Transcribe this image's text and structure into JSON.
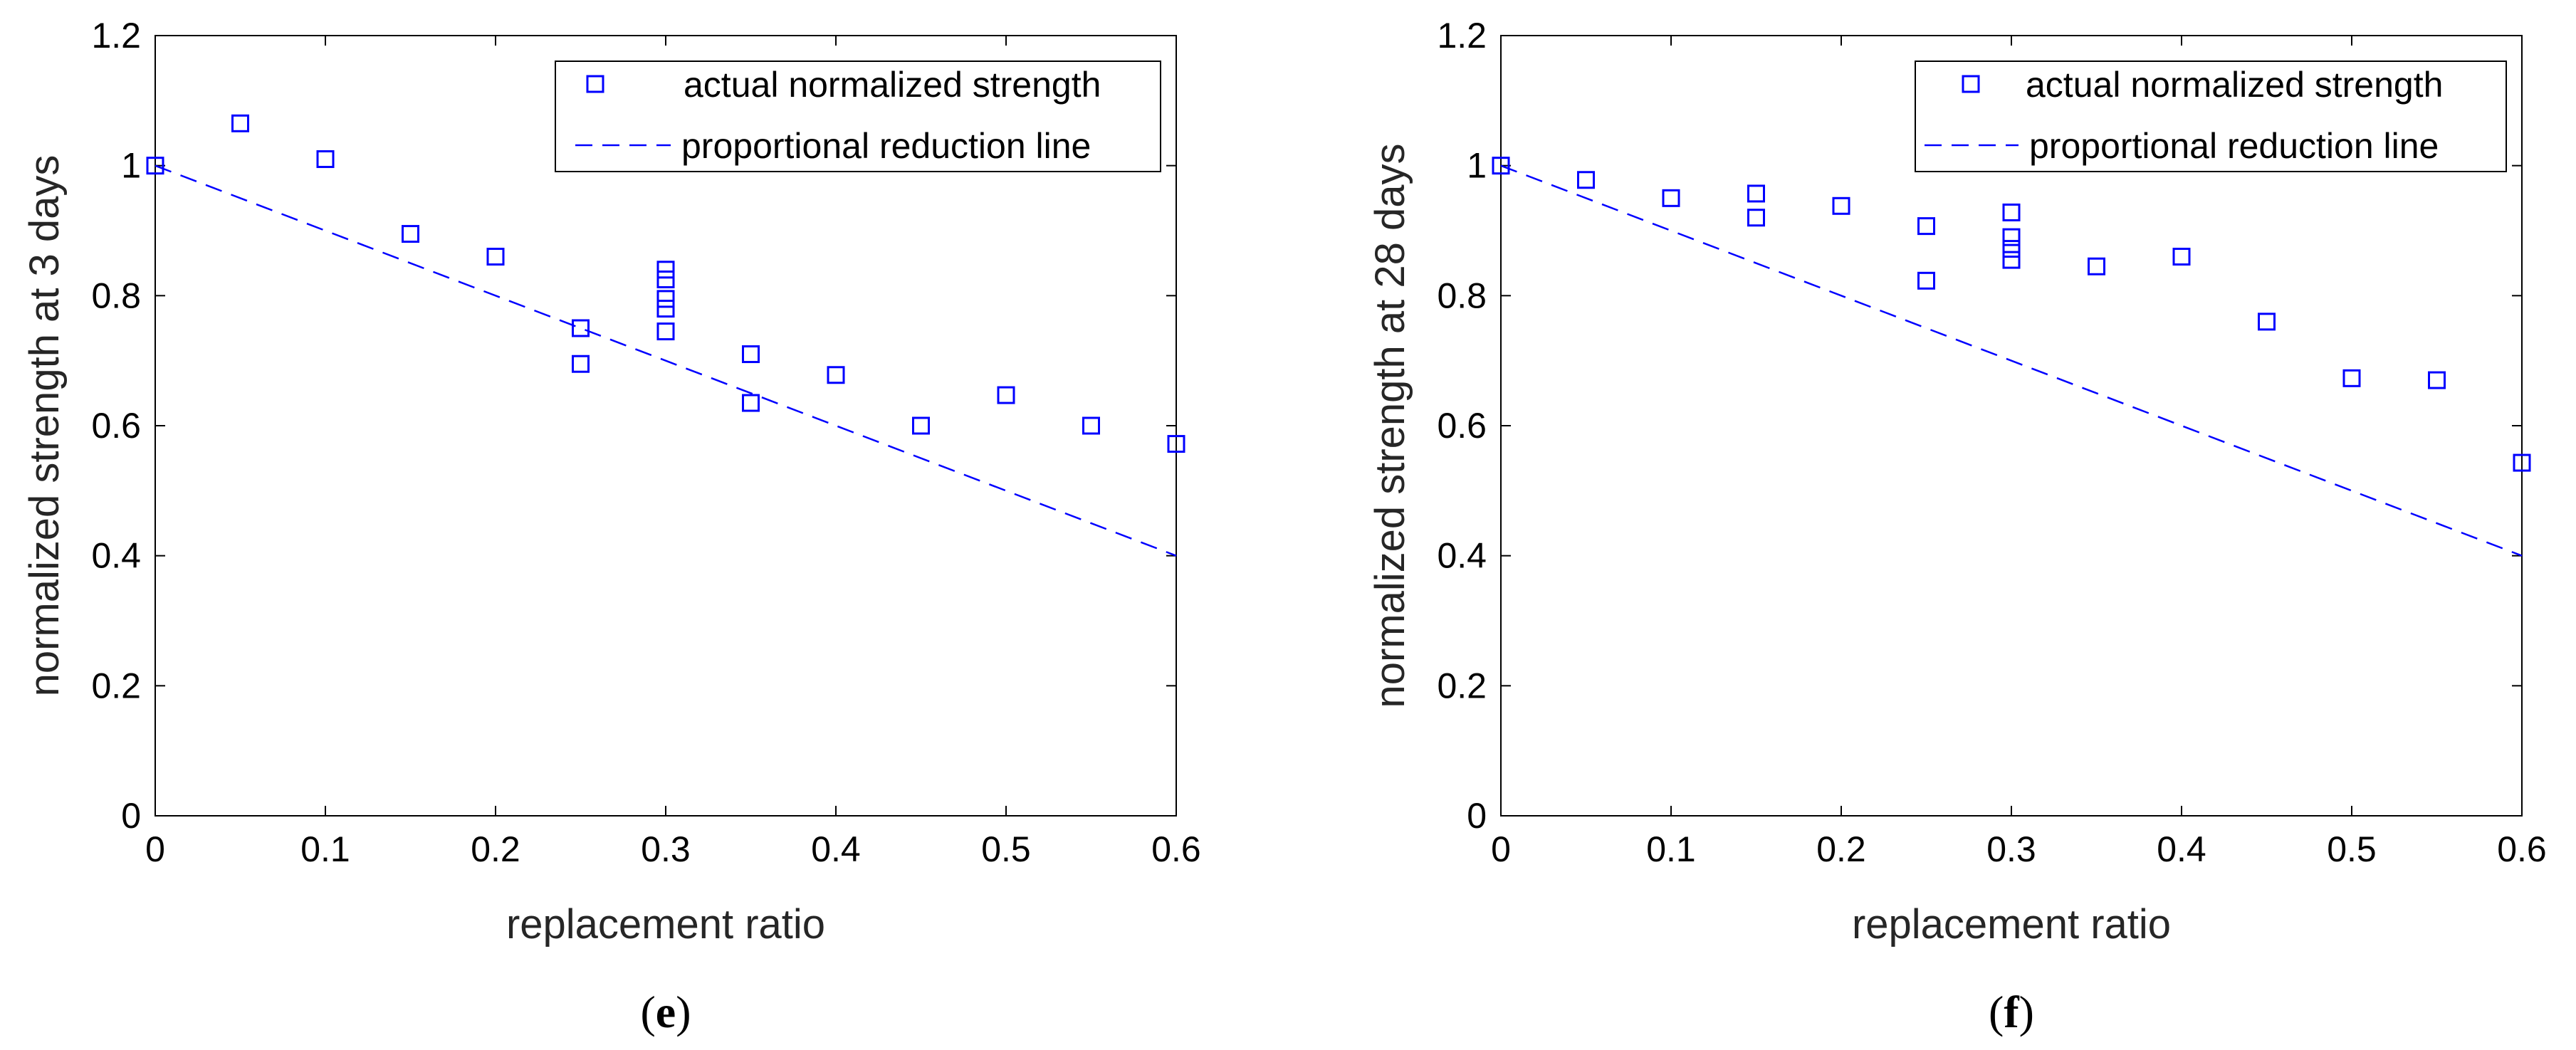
{
  "chart_data": [
    {
      "type": "scatter",
      "panel_label": "e",
      "xlabel": "replacement ratio",
      "ylabel": "normalized strength at 3 days",
      "xlim": [
        0,
        0.6
      ],
      "ylim": [
        0,
        1.2
      ],
      "xticks": [
        "0",
        "0.1",
        "0.2",
        "0.3",
        "0.4",
        "0.5",
        "0.6"
      ],
      "yticks": [
        "0",
        "0.2",
        "0.4",
        "0.6",
        "0.8",
        "1",
        "1.2"
      ],
      "grid": false,
      "legend_position": "top-right",
      "series": [
        {
          "name": "actual normalized strength",
          "kind": "marker-square",
          "color": "#0000ff",
          "points": [
            [
              0,
              1.0
            ],
            [
              0.05,
              1.065
            ],
            [
              0.1,
              1.01
            ],
            [
              0.15,
              0.895
            ],
            [
              0.2,
              0.86
            ],
            [
              0.25,
              0.75
            ],
            [
              0.25,
              0.695
            ],
            [
              0.3,
              0.84
            ],
            [
              0.3,
              0.825
            ],
            [
              0.3,
              0.795
            ],
            [
              0.3,
              0.78
            ],
            [
              0.3,
              0.745
            ],
            [
              0.35,
              0.71
            ],
            [
              0.35,
              0.635
            ],
            [
              0.4,
              0.678
            ],
            [
              0.45,
              0.6
            ],
            [
              0.5,
              0.647
            ],
            [
              0.55,
              0.6
            ],
            [
              0.6,
              0.572
            ]
          ]
        },
        {
          "name": "proportional reduction line",
          "kind": "dashed-line",
          "color": "#0000ff",
          "points": [
            [
              0,
              1.0
            ],
            [
              0.6,
              0.4
            ]
          ]
        }
      ]
    },
    {
      "type": "scatter",
      "panel_label": "f",
      "xlabel": "replacement ratio",
      "ylabel": "normalized strength at 28 days",
      "xlim": [
        0,
        0.6
      ],
      "ylim": [
        0,
        1.2
      ],
      "xticks": [
        "0",
        "0.1",
        "0.2",
        "0.3",
        "0.4",
        "0.5",
        "0.6"
      ],
      "yticks": [
        "0",
        "0.2",
        "0.4",
        "0.6",
        "0.8",
        "1",
        "1.2"
      ],
      "grid": false,
      "legend_position": "top-right",
      "series": [
        {
          "name": "actual normalized strength",
          "kind": "marker-square",
          "color": "#0000ff",
          "points": [
            [
              0,
              1.0
            ],
            [
              0.05,
              0.978
            ],
            [
              0.1,
              0.95
            ],
            [
              0.15,
              0.957
            ],
            [
              0.15,
              0.92
            ],
            [
              0.2,
              0.938
            ],
            [
              0.25,
              0.907
            ],
            [
              0.25,
              0.823
            ],
            [
              0.3,
              0.928
            ],
            [
              0.3,
              0.89
            ],
            [
              0.3,
              0.872
            ],
            [
              0.3,
              0.855
            ],
            [
              0.35,
              0.845
            ],
            [
              0.4,
              0.86
            ],
            [
              0.45,
              0.76
            ],
            [
              0.5,
              0.673
            ],
            [
              0.55,
              0.67
            ],
            [
              0.6,
              0.543
            ]
          ]
        },
        {
          "name": "proportional reduction line",
          "kind": "dashed-line",
          "color": "#0000ff",
          "points": [
            [
              0,
              1.0
            ],
            [
              0.6,
              0.4
            ]
          ]
        }
      ]
    }
  ]
}
